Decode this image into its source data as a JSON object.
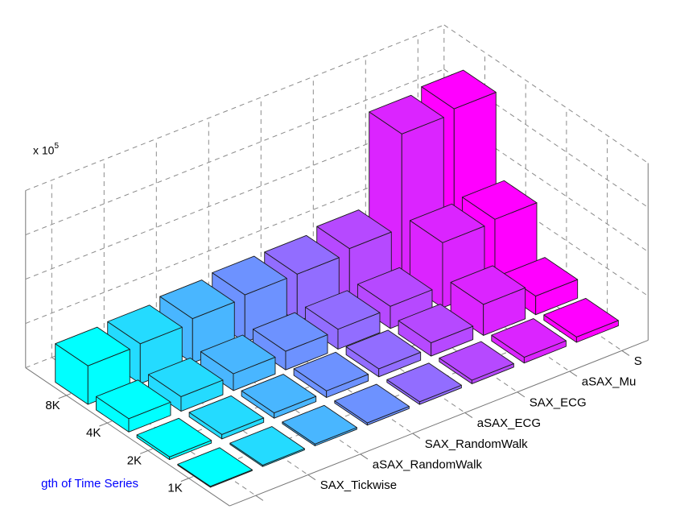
{
  "chart_data": {
    "type": "bar3d",
    "categories": [
      "SAX_Tickwise",
      "aSAX_RandomWalk",
      "SAX_RandomWalk",
      "aSAX_ECG",
      "SAX_ECG",
      "aSAX_Mu",
      "S",
      ""
    ],
    "rows": [
      "8K",
      "4K",
      "2K",
      "1K"
    ],
    "series": [
      {
        "name": "8K",
        "values": [
          0.87,
          0.9,
          1.0,
          1.07,
          1.07,
          1.18,
          3.3,
          3.4
        ]
      },
      {
        "name": "4K",
        "values": [
          0.3,
          0.33,
          0.38,
          0.42,
          0.45,
          0.5,
          1.47,
          1.53
        ]
      },
      {
        "name": "2K",
        "values": [
          0.06,
          0.1,
          0.12,
          0.15,
          0.18,
          0.3,
          0.7,
          0.42
        ]
      },
      {
        "name": "1K",
        "values": [
          0.02,
          0.03,
          0.04,
          0.05,
          0.06,
          0.08,
          0.13,
          0.12
        ]
      }
    ],
    "ylabel": "gth of Time Series",
    "zlabel_multiplier": "x 10",
    "zlabel_exponent": "5",
    "zlim": [
      0,
      4
    ],
    "grid": true,
    "colormap": [
      "#00ffff",
      "#24dbff",
      "#49b6ff",
      "#6d92ff",
      "#926dff",
      "#b649ff",
      "#db24ff",
      "#ff00ff"
    ],
    "ylabel_color": "#0000ff"
  }
}
